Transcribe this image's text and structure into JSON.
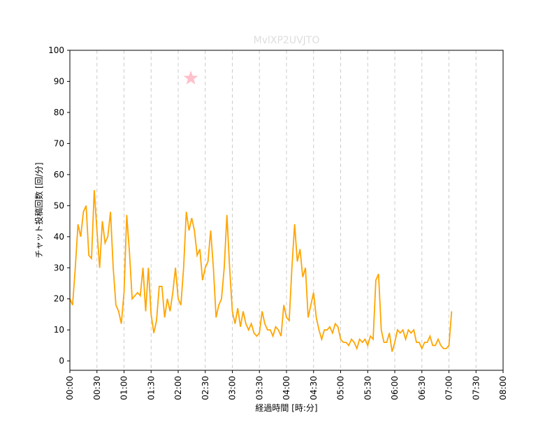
{
  "chart_data": {
    "type": "line",
    "title": "MvlXP2UVJTO",
    "xlabel": "経過時間 [時:分]",
    "ylabel": "チャット投稿回数 [回/分]",
    "color": "#ffa500",
    "x": [
      0,
      3,
      6,
      9,
      12,
      15,
      18,
      21,
      24,
      27,
      30,
      33,
      36,
      39,
      42,
      45,
      48,
      51,
      54,
      57,
      60,
      63,
      66,
      69,
      72,
      75,
      78,
      81,
      84,
      87,
      90,
      93,
      96,
      99,
      102,
      105,
      108,
      111,
      114,
      117,
      120,
      123,
      126,
      129,
      132,
      135,
      138,
      141,
      144,
      147,
      150,
      153,
      156,
      159,
      162,
      165,
      168,
      171,
      174,
      177,
      180,
      183,
      186,
      189,
      192,
      195,
      198,
      201,
      204,
      207,
      210,
      213,
      216,
      219,
      222,
      225,
      228,
      231,
      234,
      237,
      240,
      243,
      246,
      249,
      252,
      255,
      258,
      261,
      264,
      267,
      270,
      273,
      276,
      279,
      282,
      285,
      288,
      291,
      294,
      297,
      300,
      303,
      306,
      309,
      312,
      315,
      318,
      321,
      324,
      327,
      330,
      333,
      336,
      339,
      342,
      345,
      348,
      351,
      354,
      357,
      360,
      363,
      366,
      369,
      372,
      375,
      378,
      381,
      384,
      387,
      390,
      393,
      396,
      399,
      402,
      405,
      408,
      411,
      414,
      417,
      420,
      423
    ],
    "values": [
      20,
      18,
      30,
      44,
      40,
      48,
      50,
      34,
      33,
      55,
      42,
      30,
      45,
      38,
      40,
      48,
      30,
      18,
      16,
      12,
      22,
      47,
      35,
      20,
      21,
      22,
      21,
      30,
      16,
      30,
      15,
      9,
      13,
      24,
      24,
      14,
      20,
      16,
      22,
      30,
      20,
      18,
      30,
      48,
      42,
      46,
      42,
      34,
      36,
      26,
      30,
      32,
      42,
      30,
      14,
      18,
      20,
      30,
      47,
      30,
      16,
      12,
      17,
      11,
      16,
      12,
      10,
      12,
      9,
      8,
      9,
      16,
      12,
      10,
      10,
      8,
      11,
      10,
      8,
      18,
      14,
      13,
      30,
      44,
      32,
      36,
      27,
      30,
      14,
      18,
      22,
      14,
      10,
      7,
      10,
      10,
      11,
      9,
      12,
      11,
      7,
      6,
      6,
      5,
      7,
      6,
      4,
      7,
      6,
      7,
      5,
      8,
      7,
      26,
      28,
      10,
      6,
      6,
      9,
      3,
      6,
      10,
      9,
      10,
      7,
      10,
      9,
      10,
      6,
      6,
      4,
      6,
      6,
      8,
      5,
      5,
      7,
      5,
      4,
      4,
      5,
      16
    ],
    "marker": {
      "x": 134,
      "y": 91,
      "color": "#ffc0cb"
    },
    "xlim": [
      0,
      480
    ],
    "xticks": [
      {
        "value": 0,
        "label": "00:00"
      },
      {
        "value": 30,
        "label": "00:30"
      },
      {
        "value": 60,
        "label": "01:00"
      },
      {
        "value": 90,
        "label": "01:30"
      },
      {
        "value": 120,
        "label": "02:00"
      },
      {
        "value": 150,
        "label": "02:30"
      },
      {
        "value": 180,
        "label": "03:00"
      },
      {
        "value": 210,
        "label": "03:30"
      },
      {
        "value": 240,
        "label": "04:00"
      },
      {
        "value": 270,
        "label": "04:30"
      },
      {
        "value": 300,
        "label": "05:00"
      },
      {
        "value": 330,
        "label": "05:30"
      },
      {
        "value": 360,
        "label": "06:00"
      },
      {
        "value": 390,
        "label": "06:30"
      },
      {
        "value": 420,
        "label": "07:00"
      },
      {
        "value": 450,
        "label": "07:30"
      },
      {
        "value": 480,
        "label": "08:00"
      }
    ],
    "ylim": [
      -3,
      100
    ],
    "yticks": [
      0,
      10,
      20,
      30,
      40,
      50,
      60,
      70,
      80,
      90,
      100
    ],
    "grid": "x"
  }
}
